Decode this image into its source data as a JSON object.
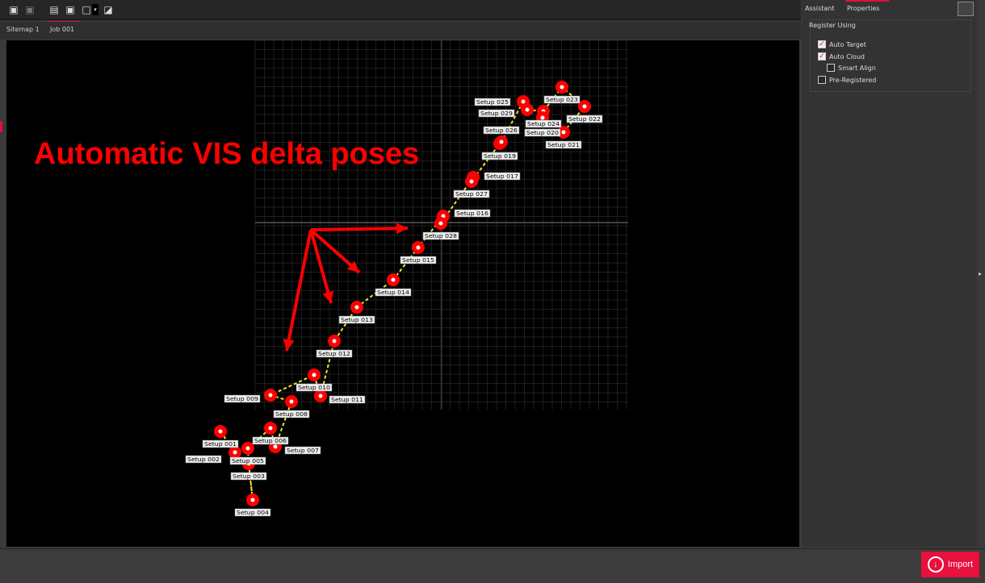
{
  "toolbar": {
    "icons": [
      "add-layer-icon",
      "remove-layer-icon",
      "fit-view-icon",
      "layer-settings-icon",
      "select-box-icon",
      "dropdown-icon",
      "export-image-icon"
    ]
  },
  "tabs": [
    {
      "label": "Sitemap 1"
    },
    {
      "label": "Job 001",
      "active": true
    }
  ],
  "side": {
    "tabs": [
      {
        "label": "Assistant"
      },
      {
        "label": "Properties",
        "active": true
      }
    ],
    "group_title": "Register Using",
    "options": [
      {
        "label": "Auto Target",
        "checked": true
      },
      {
        "label": "Auto Cloud",
        "checked": true
      },
      {
        "label": "Smart Align",
        "checked": false
      },
      {
        "label": "Pre-Registered",
        "checked": false
      }
    ]
  },
  "annotation": "Automatic VIS delta poses",
  "setups": [
    "Setup 001",
    "Setup 002",
    "Setup 003",
    "Setup 004",
    "Setup 005",
    "Setup 006",
    "Setup 007",
    "Setup 008",
    "Setup 009",
    "Setup 010",
    "Setup 011",
    "Setup 012",
    "Setup 013",
    "Setup 014",
    "Setup 015",
    "Setup 016",
    "Setup 028",
    "Setup 017",
    "Setup 027",
    "Setup 019",
    "Setup 026",
    "Setup 025",
    "Setup 029",
    "Setup 024",
    "Setup 020",
    "Setup 023",
    "Setup 022",
    "Setup 021"
  ],
  "import_label": "Import",
  "colors": {
    "accent": "#e8103c",
    "marker": "#ff0000",
    "path": "#f5e42a",
    "annotation": "#ff0000"
  }
}
